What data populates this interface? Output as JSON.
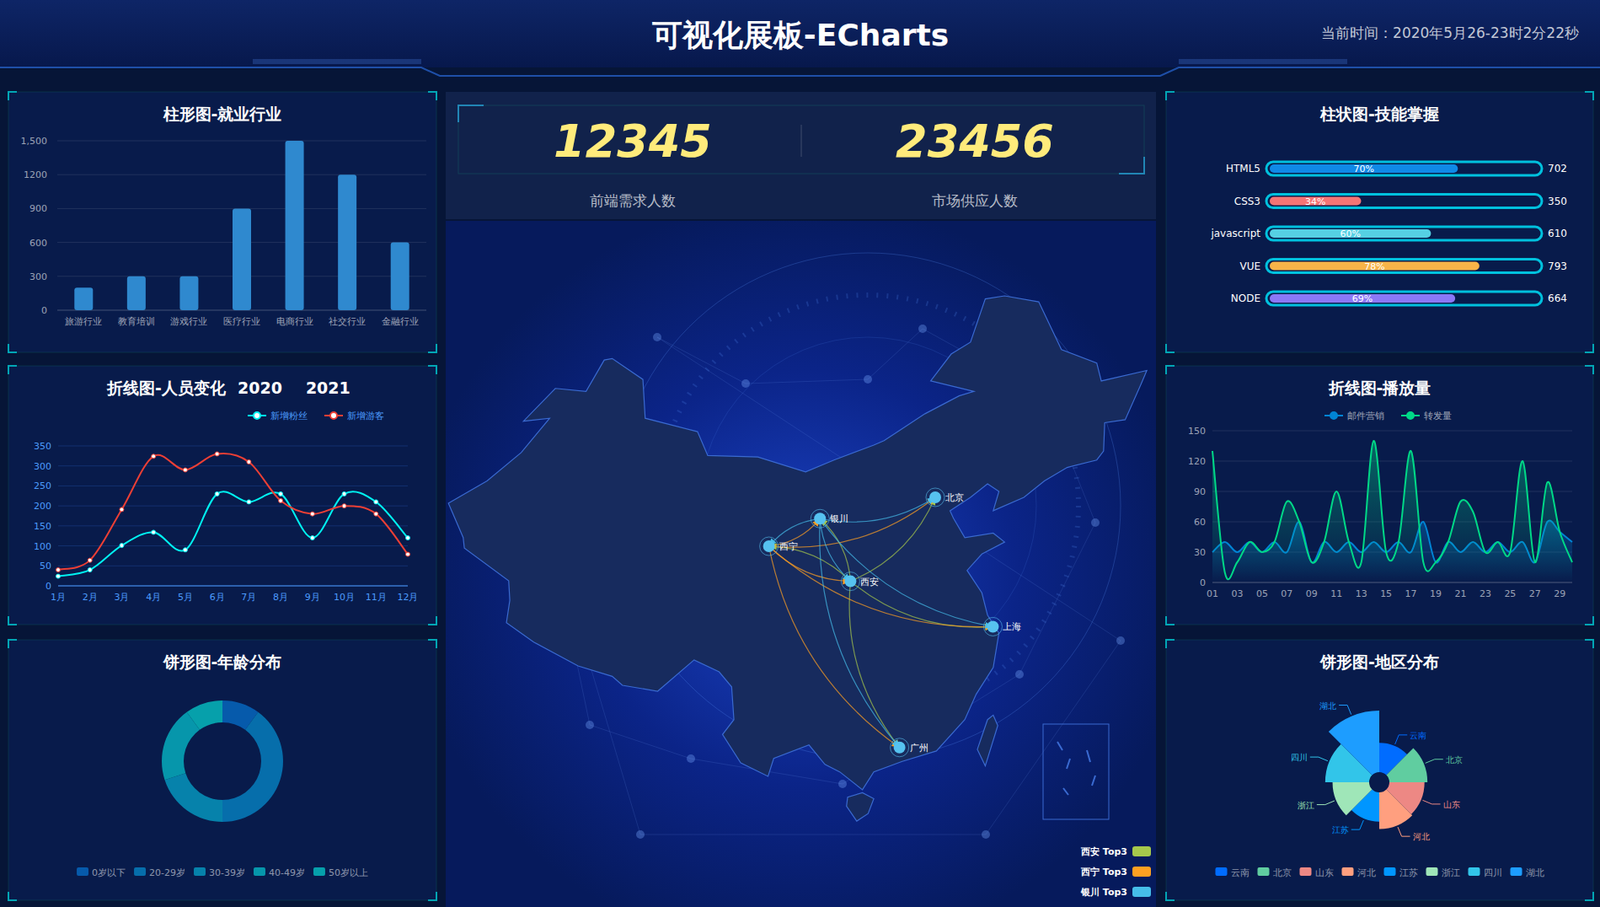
{
  "header": {
    "title": "可视化展板-ECharts",
    "time": "当前时间：2020年5月26-23时2分22秒"
  },
  "kpis": [
    {
      "value": 12345,
      "label": "前端需求人数"
    },
    {
      "value": 23456,
      "label": "市场供应人数"
    }
  ],
  "map": {
    "cities": [
      {
        "name": "北京",
        "lon": 116.4,
        "lat": 39.9
      },
      {
        "name": "银川",
        "lon": 106.27,
        "lat": 38.47
      },
      {
        "name": "西宁",
        "lon": 101.78,
        "lat": 36.62
      },
      {
        "name": "西安",
        "lon": 108.95,
        "lat": 34.27
      },
      {
        "name": "上海",
        "lon": 121.47,
        "lat": 31.23
      },
      {
        "name": "广州",
        "lon": 113.26,
        "lat": 23.13
      }
    ],
    "groups": [
      {
        "name": "西安 Top3",
        "color": "#a6c84c",
        "from": "西安",
        "to": [
          "北京",
          "上海",
          "广州",
          "西宁",
          "银川"
        ]
      },
      {
        "name": "西宁 Top3",
        "color": "#ffa022",
        "from": "西宁",
        "to": [
          "北京",
          "上海",
          "广州",
          "西安",
          "银川"
        ]
      },
      {
        "name": "银川 Top3",
        "color": "#46bee9",
        "from": "银川",
        "to": [
          "北京",
          "广州",
          "上海",
          "西安",
          "西宁"
        ]
      }
    ]
  },
  "chart_data": [
    {
      "type": "bar",
      "title": "柱形图-就业行业",
      "categories": [
        "旅游行业",
        "教育培训",
        "游戏行业",
        "医疗行业",
        "电商行业",
        "社交行业",
        "金融行业"
      ],
      "values": [
        200,
        300,
        300,
        900,
        1500,
        1200,
        600
      ],
      "color": "#2f89cf",
      "ylim": [
        0,
        1500
      ],
      "yticks": [
        0,
        300,
        600,
        900,
        1200,
        {
          "value": 1500,
          "label": "1,500"
        }
      ],
      "grid": true
    },
    {
      "type": "line",
      "title": "折线图-人员变化",
      "years": [
        "2020",
        "2021"
      ],
      "categories": [
        "1月",
        "2月",
        "3月",
        "4月",
        "5月",
        "6月",
        "7月",
        "8月",
        "9月",
        "10月",
        "11月",
        "12月"
      ],
      "series": [
        {
          "name": "新增粉丝",
          "color": "#00f2f1",
          "values": [
            24,
            40,
            101,
            134,
            90,
            230,
            210,
            230,
            120,
            230,
            210,
            120
          ]
        },
        {
          "name": "新增游客",
          "color": "#ed3f35",
          "values": [
            40,
            64,
            191,
            324,
            290,
            330,
            310,
            213,
            180,
            200,
            180,
            79
          ]
        }
      ],
      "ylim": [
        0,
        350
      ],
      "yticks": [
        0,
        50,
        100,
        150,
        200,
        250,
        300,
        350
      ],
      "grid": true,
      "legend": "top",
      "marker": "circle",
      "line_style": "smooth"
    },
    {
      "type": "donut",
      "title": "饼形图-年龄分布",
      "categories": [
        "0岁以下",
        "20-29岁",
        "30-39岁",
        "40-49岁",
        "50岁以上"
      ],
      "values": [
        1,
        4,
        2,
        2,
        1
      ],
      "colors": [
        "#065aab",
        "#066eab",
        "#0682ab",
        "#0696ab",
        "#06a0ab"
      ],
      "legend": "bottom"
    },
    {
      "type": "bar",
      "orientation": "horizontal",
      "title": "柱状图-技能掌握",
      "categories": [
        "HTML5",
        "CSS3",
        "javascript",
        "VUE",
        "NODE"
      ],
      "values": [
        70,
        34,
        60,
        78,
        69
      ],
      "value_labels": [
        "70%",
        "34%",
        "60%",
        "78%",
        "69%"
      ],
      "data_labels": true,
      "totals": [
        702,
        350,
        610,
        793,
        664
      ],
      "colors": [
        "#1089e7",
        "#f57474",
        "#56d0e3",
        "#f8b448",
        "#8b78f6"
      ],
      "xlim": [
        0,
        100
      ],
      "tick_labels": false
    },
    {
      "type": "line",
      "title": "折线图-播放量",
      "categories": [
        "01",
        null,
        "03",
        null,
        "05",
        null,
        "07",
        null,
        "09",
        null,
        "11",
        null,
        "13",
        null,
        "15",
        null,
        "17",
        null,
        "19",
        null,
        "21",
        null,
        "23",
        null,
        "25",
        null,
        "27",
        null,
        "29",
        null
      ],
      "series": [
        {
          "name": "邮件营销",
          "color": "#0184d5",
          "values": [
            30,
            40,
            30,
            40,
            30,
            40,
            30,
            60,
            20,
            40,
            30,
            40,
            30,
            40,
            30,
            40,
            30,
            60,
            20,
            40,
            30,
            40,
            30,
            40,
            30,
            40,
            20,
            60,
            50,
            40
          ]
        },
        {
          "name": "转发量",
          "color": "#00d887",
          "values": [
            130,
            10,
            20,
            40,
            30,
            40,
            80,
            60,
            20,
            40,
            90,
            40,
            20,
            140,
            30,
            40,
            130,
            20,
            20,
            40,
            80,
            70,
            30,
            40,
            30,
            120,
            20,
            99,
            50,
            20
          ]
        }
      ],
      "ylim": [
        0,
        150
      ],
      "yticks": [
        0,
        30,
        60,
        90,
        120,
        150
      ],
      "grid": true,
      "legend": "top",
      "marker": "none",
      "line_style": "smooth"
    },
    {
      "type": "rose",
      "title": "饼形图-地区分布",
      "categories": [
        "云南",
        "北京",
        "山东",
        "河北",
        "江苏",
        "浙江",
        "四川",
        "湖北"
      ],
      "values": [
        20,
        26,
        24,
        25,
        20,
        25,
        30,
        42
      ],
      "colors": [
        "#006cff",
        "#60cda0",
        "#ed8884",
        "#ff9f7f",
        "#0096ff",
        "#9fe6b8",
        "#32c5e9",
        "#1d9dff"
      ],
      "legend": "bottom"
    }
  ]
}
